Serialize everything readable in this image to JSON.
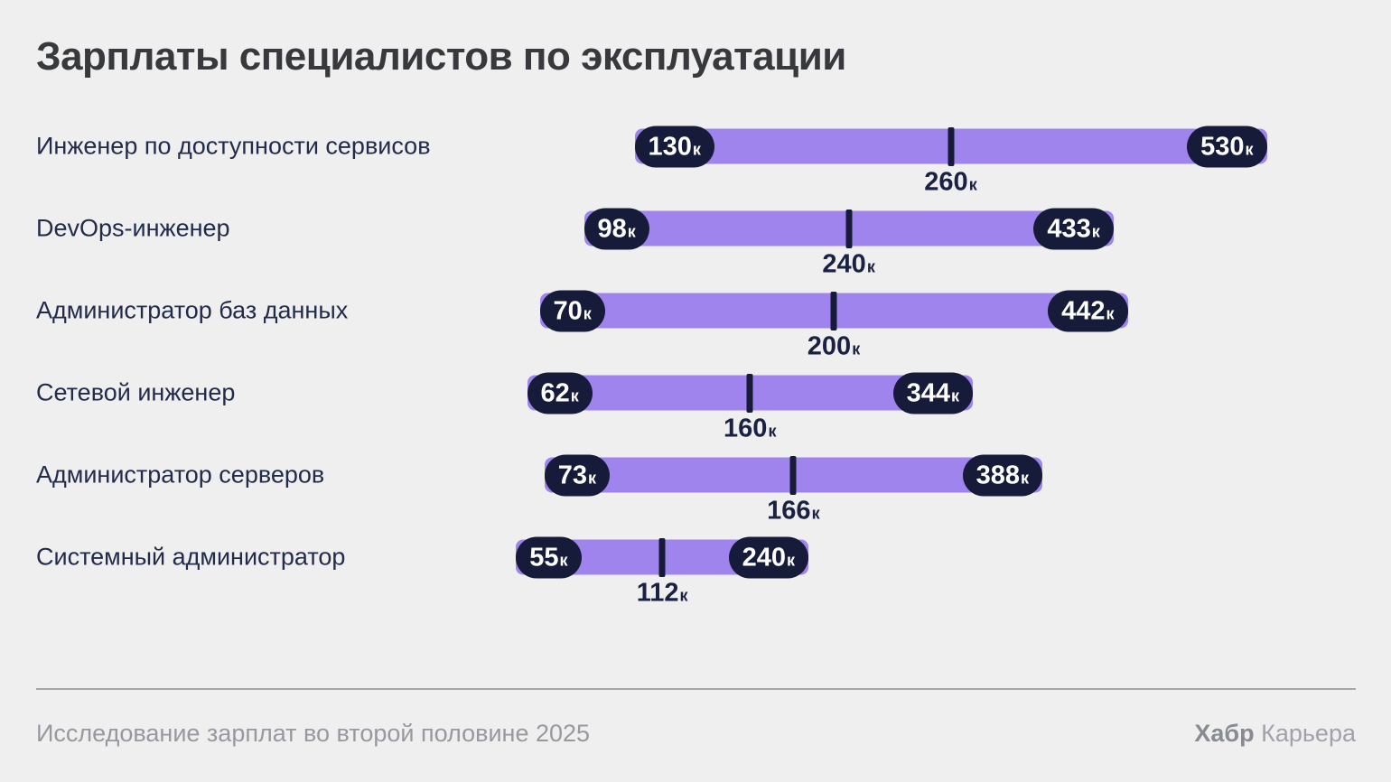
{
  "title": "Зарплаты специалистов по эксплуатации",
  "unit_suffix": "к",
  "footer": {
    "source": "Исследование зарплат во второй половине 2025",
    "brand_bold": "Хабр",
    "brand_regular": "Карьера"
  },
  "colors": {
    "background": "#EFEFEF",
    "bar": "#9F84EE",
    "pill": "#151B38",
    "pill_text": "#FFFFFF",
    "label": "#222B4A",
    "median_text": "#1A2142",
    "title": "#37393D",
    "footer_text": "#97999F",
    "divider": "#A5A7AA"
  },
  "chart_data": {
    "type": "bar",
    "subtype": "horizontal-range",
    "title": "Зарплаты специалистов по эксплуатации",
    "categories": [
      "Инженер по доступности сервисов",
      "DevOps-инженер",
      "Администратор баз данных",
      "Сетевой инженер",
      "Администратор серверов",
      "Системный администратор"
    ],
    "series": [
      {
        "name": "min",
        "values": [
          130,
          98,
          70,
          62,
          73,
          55
        ]
      },
      {
        "name": "median",
        "values": [
          260,
          240,
          200,
          160,
          166,
          112
        ]
      },
      {
        "name": "max",
        "values": [
          530,
          433,
          442,
          344,
          388,
          240
        ]
      }
    ],
    "value_suffix": "к",
    "xlabel": "",
    "ylabel": "",
    "axis": "hidden",
    "grid": false,
    "legend": "none",
    "median_marker": "tick-at-bar-center"
  }
}
